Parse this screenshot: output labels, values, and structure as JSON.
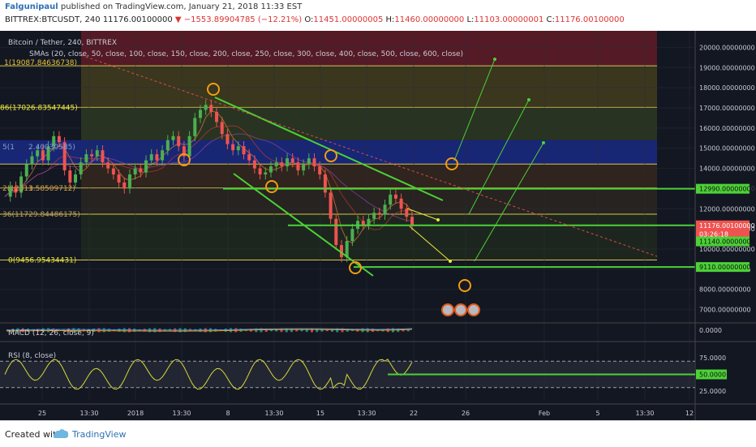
{
  "header": {
    "author": "Falgunipaul",
    "published": "published on TradingView.com, January 21, 2018 11:33 EST",
    "symbol": "BITTREX:BTCUSDT, 240",
    "last": "11176.00100000",
    "change": "▼ −1553.89904785 (−12.21%)",
    "open_label": "O:",
    "open": "11451.00000005",
    "high_label": "H:",
    "high": "11460.00000000",
    "low_label": "L:",
    "low": "11103.00000001",
    "close_label": "C:",
    "close": "11176.00100000"
  },
  "footer": {
    "created": "Created with",
    "brand": "TradingView"
  },
  "colors": {
    "background": "#131722",
    "green": "#4cd137",
    "yellow": "#e8e83a",
    "orange": "#f39c12",
    "red_zone": "#8a1d2a",
    "blue_zone": "#1a2a8c",
    "rsi": "#d8d838",
    "price_bar": "#ff4e4e",
    "gauge_band": "#2a2e39"
  },
  "chart_data": [
    {
      "type": "line",
      "title": "Bitcoin / Tether, 240, BITTREX",
      "sma_label": "SMAs (20, close, 50, close, 100, close, 150, close, 200, close, 250, close, 300, close, 400, close, 500, close, 600, close)",
      "y_ticks": [
        "20000.00000000",
        "19000.00000000",
        "18000.00000000",
        "17000.00000000",
        "16000.00000000",
        "15000.00000000",
        "14000.00000000",
        "13000.00000000",
        "12000.00000000",
        "11000.00000000",
        "10000.00000000",
        "9000.00000000",
        "8000.00000000",
        "7000.00000000"
      ],
      "ylim": [
        6500,
        20500
      ],
      "x_ticks": [
        "25",
        "13:30",
        "2018",
        "13:30",
        "8",
        "13:30",
        "15",
        "13:30",
        "22",
        "26",
        "Feb",
        "5",
        "13:30",
        "12"
      ],
      "fib_labels": [
        "1(19087.84636738)",
        "86(17026.83547445)",
        "5(1",
        "2.40030585)",
        "2(12313",
        "1.58509712)",
        "36(11729.84486175)",
        "0(9456.95434431)"
      ],
      "fib_levels": [
        19087.85,
        17026.84,
        15400,
        14212.4,
        13025,
        11729.84,
        9456.95
      ],
      "horizontal_levels": [
        {
          "label": "12990.00000000",
          "value": 12990
        },
        {
          "label": "11176.00100000",
          "value": 11176
        },
        {
          "label": "03:26:18",
          "value": 10750
        },
        {
          "label": "11140.00000000",
          "value": 10380
        },
        {
          "label": "9110.00000000",
          "value": 9110
        }
      ],
      "price_path": [
        [
          0,
          12600
        ],
        [
          4,
          13100
        ],
        [
          8,
          12800
        ],
        [
          12,
          13600
        ],
        [
          16,
          14200
        ],
        [
          20,
          14600
        ],
        [
          24,
          14900
        ],
        [
          28,
          14400
        ],
        [
          32,
          15100
        ],
        [
          36,
          15600
        ],
        [
          40,
          15300
        ],
        [
          44,
          13900
        ],
        [
          48,
          13300
        ],
        [
          52,
          13700
        ],
        [
          56,
          14300
        ],
        [
          60,
          14700
        ],
        [
          64,
          14600
        ],
        [
          68,
          14900
        ],
        [
          72,
          14300
        ],
        [
          76,
          14000
        ],
        [
          80,
          13700
        ],
        [
          84,
          13300
        ],
        [
          88,
          13000
        ],
        [
          92,
          13700
        ],
        [
          96,
          14000
        ],
        [
          100,
          13800
        ],
        [
          104,
          14400
        ],
        [
          108,
          14700
        ],
        [
          112,
          14400
        ],
        [
          116,
          14900
        ],
        [
          120,
          15400
        ],
        [
          124,
          15600
        ],
        [
          128,
          15100
        ],
        [
          132,
          14600
        ],
        [
          136,
          15600
        ],
        [
          140,
          16500
        ],
        [
          144,
          16900
        ],
        [
          148,
          17150
        ],
        [
          152,
          16800
        ],
        [
          156,
          16300
        ],
        [
          160,
          15700
        ],
        [
          164,
          15200
        ],
        [
          168,
          14900
        ],
        [
          172,
          15100
        ],
        [
          176,
          14700
        ],
        [
          180,
          14400
        ],
        [
          184,
          14000
        ],
        [
          188,
          13700
        ],
        [
          192,
          13800
        ],
        [
          196,
          14100
        ],
        [
          200,
          14300
        ],
        [
          204,
          14100
        ],
        [
          208,
          14500
        ],
        [
          212,
          14300
        ],
        [
          216,
          13900
        ],
        [
          220,
          14200
        ],
        [
          224,
          14500
        ],
        [
          228,
          14100
        ],
        [
          232,
          13700
        ],
        [
          236,
          12800
        ],
        [
          240,
          11500
        ],
        [
          244,
          10200
        ],
        [
          248,
          9600
        ],
        [
          252,
          10400
        ],
        [
          256,
          11000
        ],
        [
          260,
          11400
        ],
        [
          264,
          11200
        ],
        [
          268,
          11500
        ],
        [
          272,
          11800
        ],
        [
          276,
          11700
        ],
        [
          280,
          12200
        ],
        [
          284,
          12700
        ],
        [
          288,
          12500
        ],
        [
          292,
          12000
        ],
        [
          296,
          11600
        ],
        [
          300,
          11176
        ]
      ]
    },
    {
      "type": "line",
      "title": "MACD (12, 26, close, 9)",
      "y_ticks": [
        "0.0000"
      ]
    },
    {
      "type": "line",
      "title": "RSI (8, close)",
      "y_ticks": [
        "75.0000",
        "50.0000",
        "25.0000"
      ],
      "ylim": [
        10,
        90
      ],
      "bands": [
        70,
        30
      ],
      "level_line": 50
    }
  ]
}
